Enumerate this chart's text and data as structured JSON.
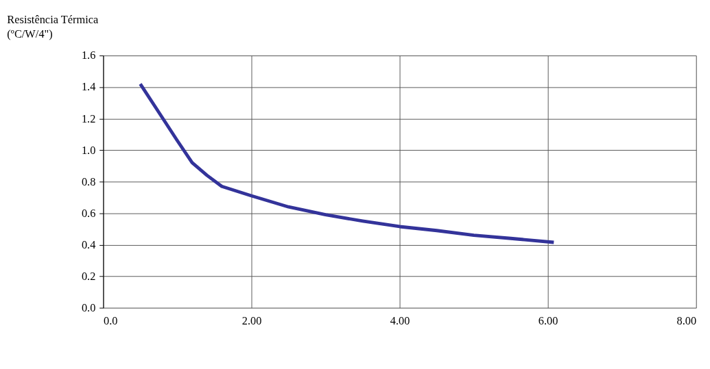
{
  "chart_data": {
    "type": "line",
    "ylabel": "Resistência Térmica\n(ºC/W/4\")",
    "x": [
      0.5,
      0.75,
      1.0,
      1.2,
      1.4,
      1.6,
      2.0,
      2.5,
      3.0,
      3.5,
      4.0,
      4.5,
      5.0,
      5.5,
      6.08
    ],
    "series": [
      {
        "color": "#33339a",
        "values": [
          1.42,
          1.24,
          1.06,
          0.92,
          0.84,
          0.77,
          0.71,
          0.64,
          0.59,
          0.55,
          0.515,
          0.49,
          0.46,
          0.44,
          0.415
        ]
      }
    ],
    "xlim": [
      0,
      8
    ],
    "ylim": [
      0,
      1.6
    ],
    "xticks": [
      {
        "value": 0,
        "label": "0.0"
      },
      {
        "value": 2,
        "label": "2.00"
      },
      {
        "value": 4,
        "label": "4.00"
      },
      {
        "value": 6,
        "label": "6.00"
      },
      {
        "value": 8,
        "label": "8.00"
      }
    ],
    "yticks": [
      {
        "value": 0,
        "label": "0.0"
      },
      {
        "value": 0.2,
        "label": "0.2"
      },
      {
        "value": 0.4,
        "label": "0.4"
      },
      {
        "value": 0.6,
        "label": "0.6"
      },
      {
        "value": 0.8,
        "label": "0.8"
      },
      {
        "value": 1.0,
        "label": "1.0"
      },
      {
        "value": 1.2,
        "label": "1.2"
      },
      {
        "value": 1.4,
        "label": "1.4"
      },
      {
        "value": 1.6,
        "label": "1.6"
      }
    ],
    "grid": true,
    "marker": "none",
    "line_style": "solid"
  }
}
